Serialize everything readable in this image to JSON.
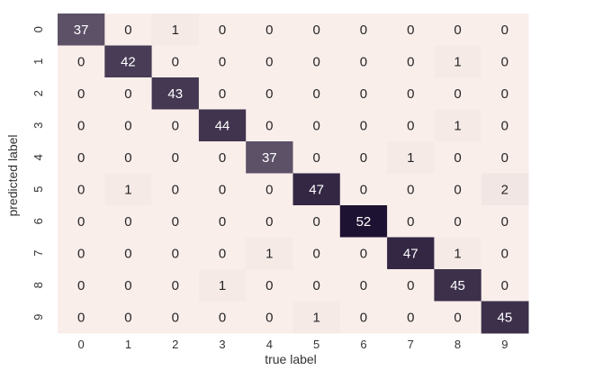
{
  "chart_data": {
    "type": "heatmap",
    "title": "",
    "xlabel": "true label",
    "ylabel": "predicted label",
    "x_ticks": [
      "0",
      "1",
      "2",
      "3",
      "4",
      "5",
      "6",
      "7",
      "8",
      "9"
    ],
    "y_ticks": [
      "0",
      "1",
      "2",
      "3",
      "4",
      "5",
      "6",
      "7",
      "8",
      "9"
    ],
    "matrix": [
      [
        37,
        0,
        1,
        0,
        0,
        0,
        0,
        0,
        0,
        0
      ],
      [
        0,
        42,
        0,
        0,
        0,
        0,
        0,
        0,
        1,
        0
      ],
      [
        0,
        0,
        43,
        0,
        0,
        0,
        0,
        0,
        0,
        0
      ],
      [
        0,
        0,
        0,
        44,
        0,
        0,
        0,
        0,
        1,
        0
      ],
      [
        0,
        0,
        0,
        0,
        37,
        0,
        0,
        1,
        0,
        0
      ],
      [
        0,
        1,
        0,
        0,
        0,
        47,
        0,
        0,
        0,
        2
      ],
      [
        0,
        0,
        0,
        0,
        0,
        0,
        52,
        0,
        0,
        0
      ],
      [
        0,
        0,
        0,
        0,
        1,
        0,
        0,
        47,
        1,
        0
      ],
      [
        0,
        0,
        0,
        1,
        0,
        0,
        0,
        0,
        45,
        0
      ],
      [
        0,
        0,
        0,
        0,
        0,
        1,
        0,
        0,
        0,
        45
      ]
    ],
    "value_range": [
      0,
      52
    ],
    "colors": {
      "low": "#faeeeb",
      "high": "#1e1232",
      "text_dark": "#262626",
      "text_light": "#ffffff"
    },
    "grid": false,
    "legend": "none"
  }
}
